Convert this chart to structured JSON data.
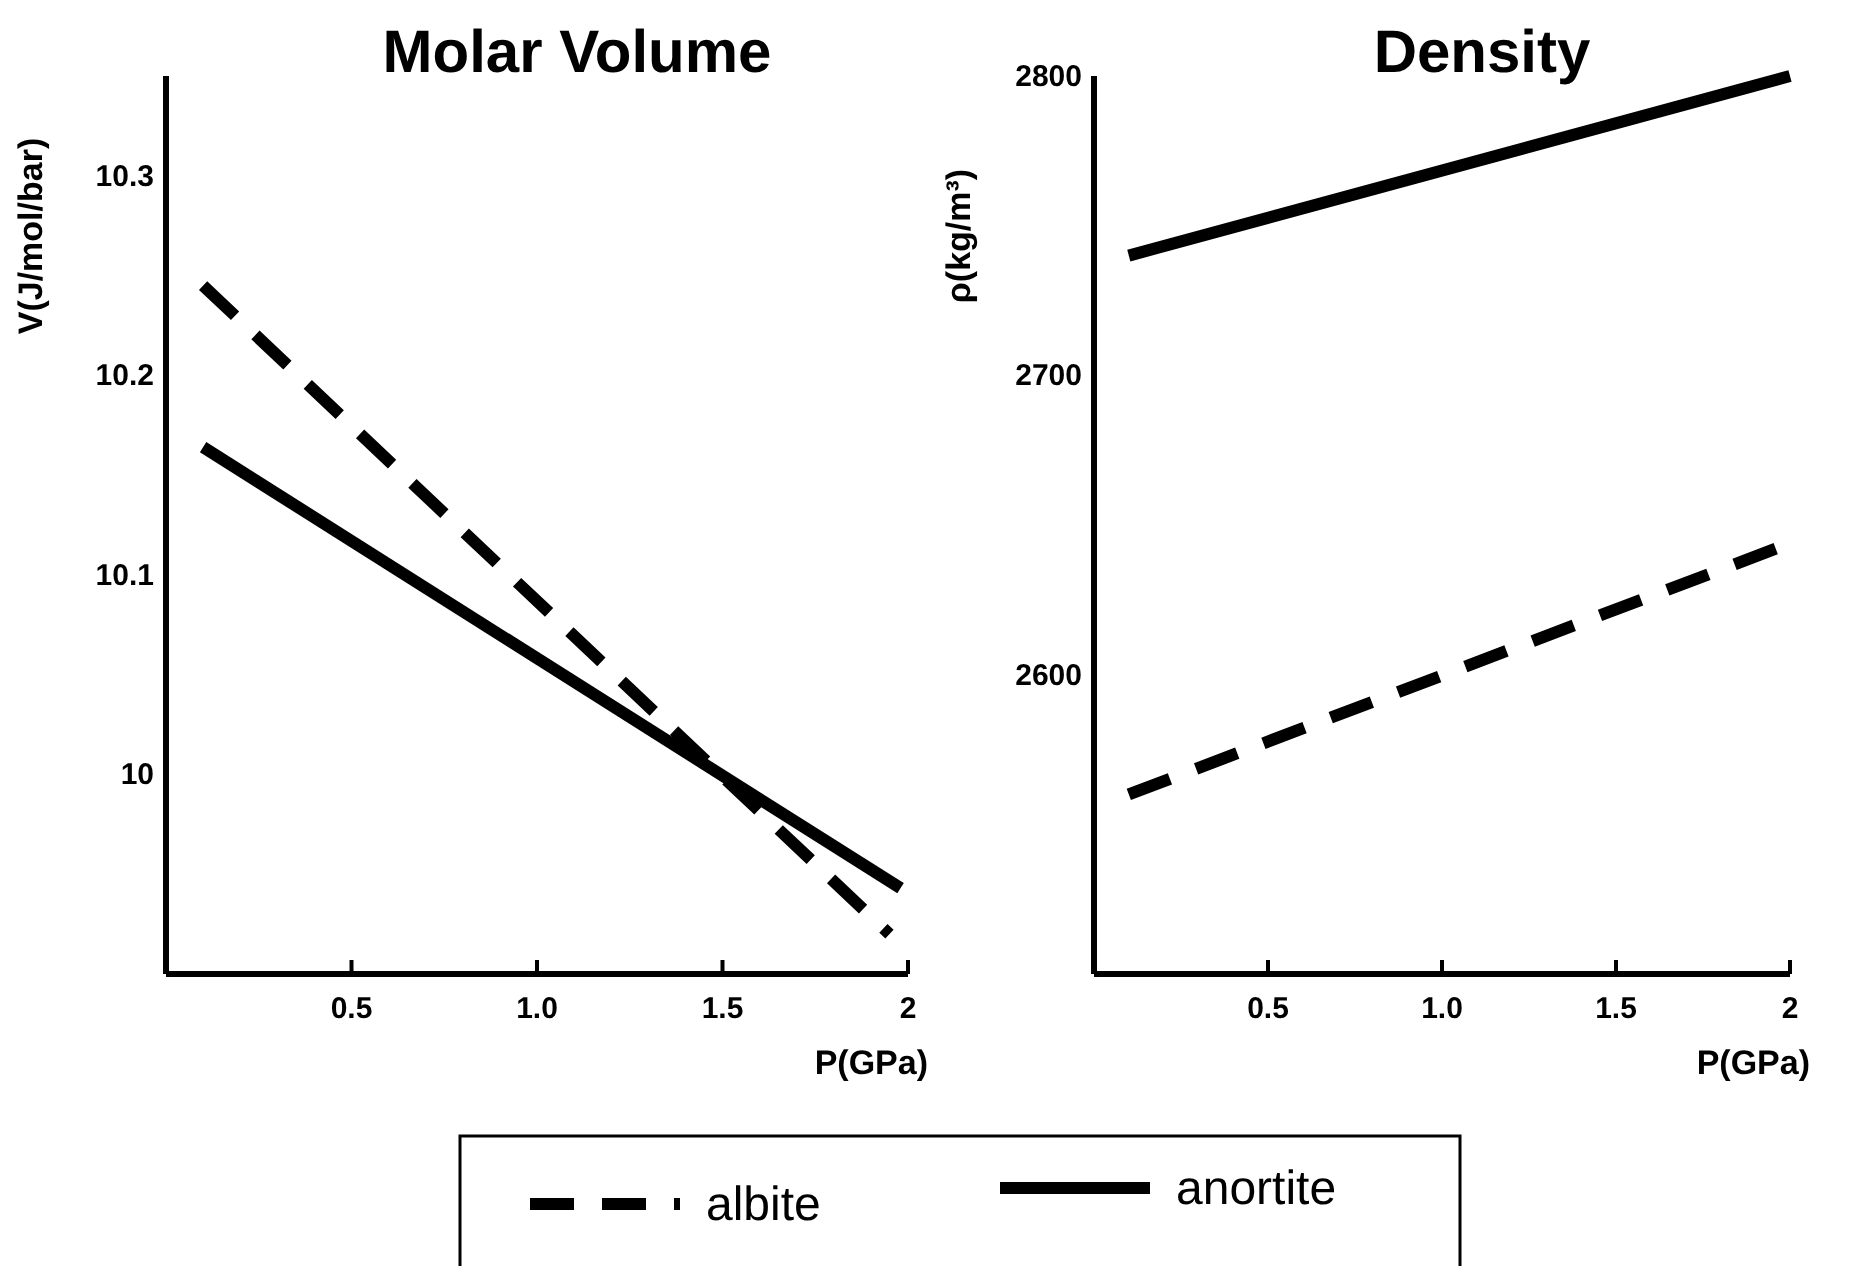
{
  "chart_data": [
    {
      "type": "line",
      "title": "Molar Volume",
      "xlabel": "P(GPa)",
      "ylabel": "V(J/mol/bar)",
      "xlim": [
        0,
        2
      ],
      "xticks": [
        0.5,
        {
          "value": 1,
          "label": "1.0"
        },
        1.5,
        2
      ],
      "ylim": [
        9.9,
        10.35
      ],
      "yticks": [
        10,
        10.1,
        10.2,
        10.3
      ],
      "grid": false,
      "legend": "bottom",
      "marker": "none",
      "series": [
        {
          "name": "albite",
          "color": "#000000",
          "line_style": "dashed",
          "x": [
            0.1,
            1.95
          ],
          "values": [
            10.245,
            9.92
          ]
        },
        {
          "name": "anortite",
          "color": "#000000",
          "line_style": "solid",
          "x": [
            0.1,
            1.98
          ],
          "values": [
            10.164,
            9.943
          ]
        }
      ]
    },
    {
      "type": "line",
      "title": "Density",
      "xlabel": "P(GPa)",
      "ylabel": "ρ(kg/m³)",
      "xlim": [
        0,
        2
      ],
      "xticks": [
        0.5,
        {
          "value": 1,
          "label": "1.0"
        },
        1.5,
        2
      ],
      "ylim": [
        2500,
        2800
      ],
      "yticks": [
        2600,
        2700,
        2800
      ],
      "grid": false,
      "marker": "none",
      "series": [
        {
          "color": "#000000",
          "line_style": "dashed",
          "x": [
            0.1,
            1.98
          ],
          "values": [
            2560,
            2643
          ]
        },
        {
          "color": "#000000",
          "line_style": "solid",
          "x": [
            0.1,
            2
          ],
          "values": [
            2740,
            2800
          ]
        }
      ]
    }
  ]
}
